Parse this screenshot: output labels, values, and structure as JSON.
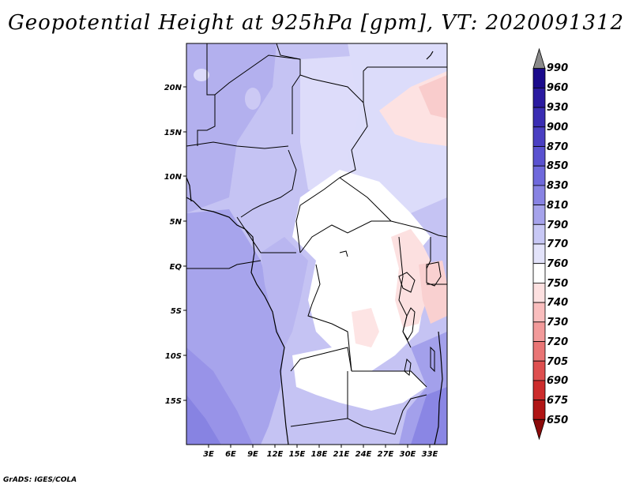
{
  "title": "Geopotential Height at 925hPa [gpm], VT: 2020091312",
  "credit": "GrADS: IGES/COLA",
  "lat_labels": [
    "20N",
    "15N",
    "10N",
    "5N",
    "EQ",
    "5S",
    "10S",
    "15S"
  ],
  "lon_labels": [
    "3E",
    "6E",
    "9E",
    "12E",
    "15E",
    "18E",
    "21E",
    "24E",
    "27E",
    "30E",
    "33E"
  ],
  "colorbar": {
    "labels": [
      "990",
      "960",
      "930",
      "900",
      "870",
      "850",
      "830",
      "810",
      "790",
      "770",
      "760",
      "750",
      "740",
      "730",
      "720",
      "705",
      "690",
      "675",
      "650"
    ],
    "colors": [
      "#8a8a8a",
      "#1a0a8c",
      "#2a1aa0",
      "#3a2db3",
      "#4a3fc2",
      "#5a52d0",
      "#6f69dc",
      "#8883e3",
      "#a6a3eb",
      "#c8c8f5",
      "#e3e3fa",
      "#ffffff",
      "#fde0e0",
      "#f9bdbd",
      "#f29a9a",
      "#e97575",
      "#de4f4f",
      "#cc2c2c",
      "#b01515",
      "#8b0a0a"
    ]
  }
}
